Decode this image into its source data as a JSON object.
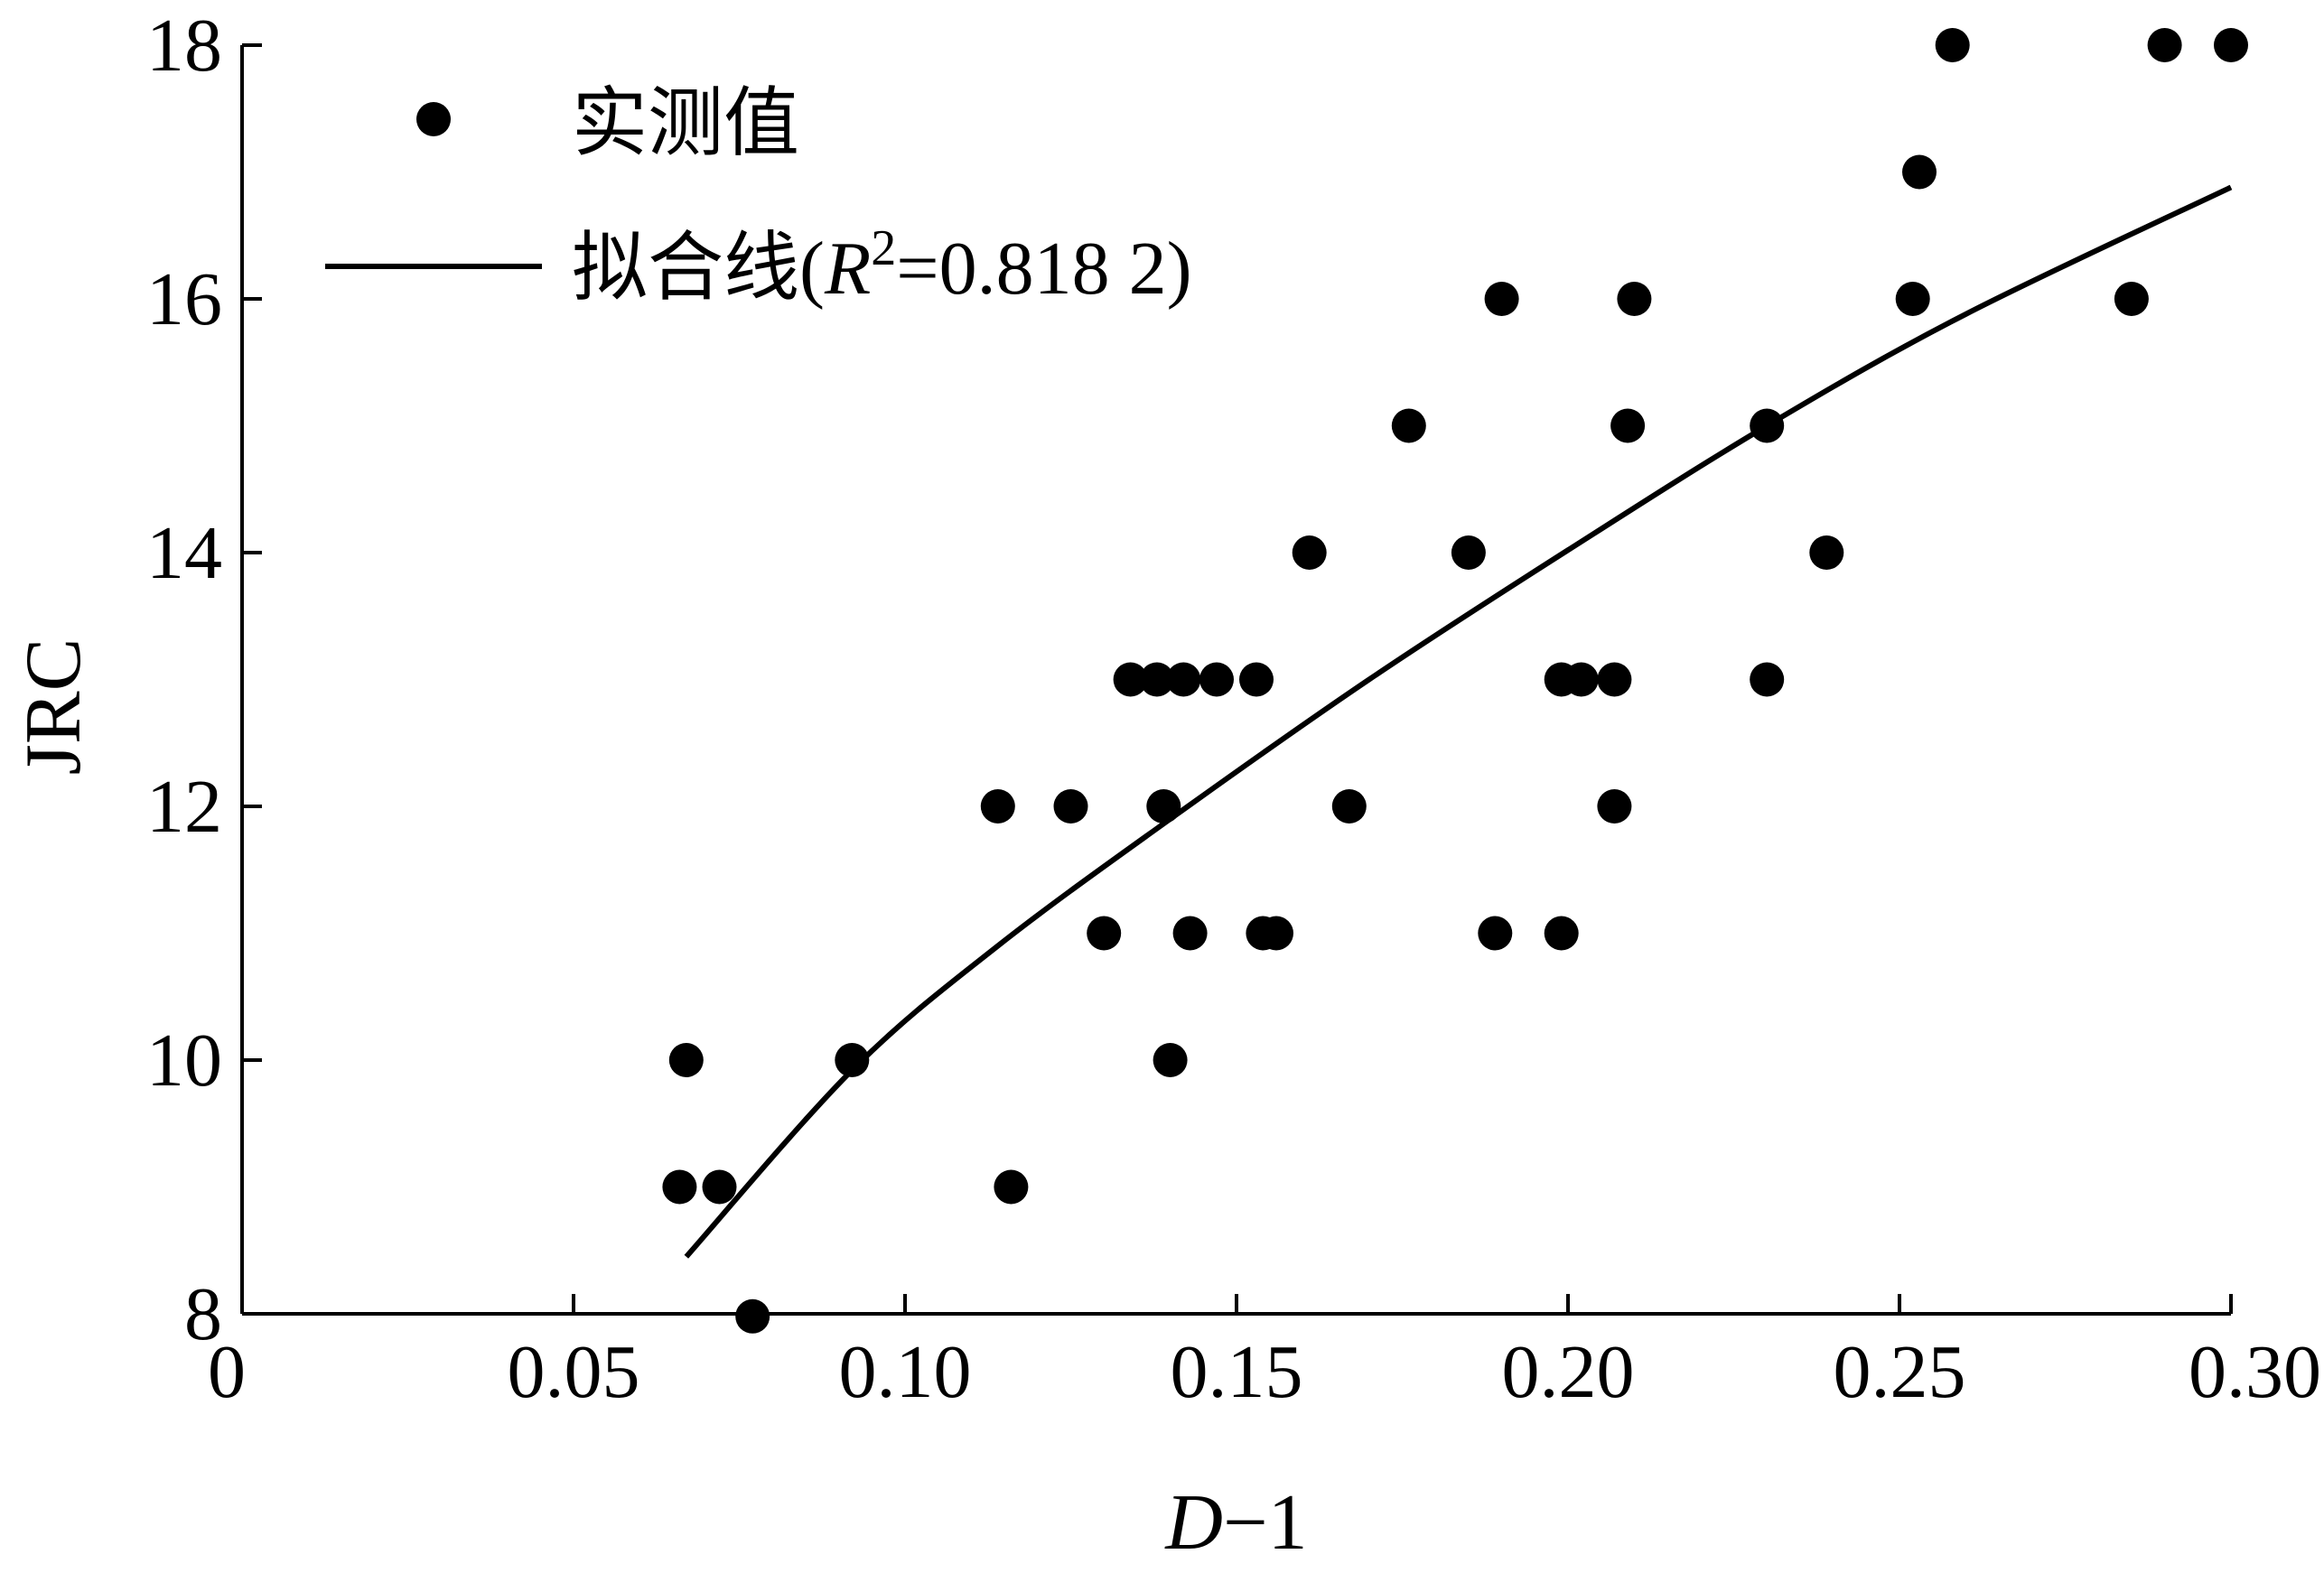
{
  "chart_data": {
    "type": "scatter",
    "xlabel": "D−1",
    "ylabel": "JRC",
    "xlim": [
      0,
      0.3
    ],
    "ylim": [
      8,
      18
    ],
    "x_ticks": [
      "0",
      "0.05",
      "0.10",
      "0.15",
      "0.20",
      "0.25",
      "0.30"
    ],
    "y_ticks": [
      "8",
      "10",
      "12",
      "14",
      "16",
      "18"
    ],
    "grid": false,
    "legend_position": "top-left",
    "legend": {
      "measured_label": "实测值",
      "fit_label_prefix": "拟合线(",
      "fit_label_r": "R",
      "fit_label_sup": "2",
      "fit_label_value": "=0.818 2)"
    },
    "series": [
      {
        "name": "实测值",
        "type": "scatter",
        "points": [
          [
            0.066,
            9.0
          ],
          [
            0.067,
            10.0
          ],
          [
            0.072,
            9.0
          ],
          [
            0.077,
            7.98
          ],
          [
            0.092,
            10.0
          ],
          [
            0.114,
            12.0
          ],
          [
            0.116,
            9.0
          ],
          [
            0.125,
            12.0
          ],
          [
            0.13,
            11.0
          ],
          [
            0.134,
            13.0
          ],
          [
            0.138,
            13.0
          ],
          [
            0.139,
            12.0
          ],
          [
            0.14,
            10.0
          ],
          [
            0.142,
            13.0
          ],
          [
            0.143,
            11.0
          ],
          [
            0.147,
            13.0
          ],
          [
            0.153,
            13.0
          ],
          [
            0.154,
            11.0
          ],
          [
            0.156,
            11.0
          ],
          [
            0.161,
            14.0
          ],
          [
            0.167,
            12.0
          ],
          [
            0.176,
            15.0
          ],
          [
            0.185,
            14.0
          ],
          [
            0.189,
            11.0
          ],
          [
            0.19,
            16.0
          ],
          [
            0.199,
            13.0
          ],
          [
            0.199,
            11.0
          ],
          [
            0.202,
            13.0
          ],
          [
            0.207,
            13.0
          ],
          [
            0.207,
            12.0
          ],
          [
            0.209,
            15.0
          ],
          [
            0.21,
            16.0
          ],
          [
            0.23,
            15.0
          ],
          [
            0.23,
            13.0
          ],
          [
            0.239,
            14.0
          ],
          [
            0.252,
            16.0
          ],
          [
            0.253,
            17.0
          ],
          [
            0.258,
            18.0
          ],
          [
            0.285,
            16.0
          ],
          [
            0.29,
            18.0
          ],
          [
            0.3,
            18.0
          ]
        ]
      },
      {
        "name": "拟合线",
        "type": "line",
        "points": [
          [
            0.067,
            8.45
          ],
          [
            0.092,
            9.92
          ],
          [
            0.114,
            10.9
          ],
          [
            0.14,
            11.9
          ],
          [
            0.17,
            13.0
          ],
          [
            0.2,
            14.02
          ],
          [
            0.23,
            15.0
          ],
          [
            0.26,
            15.88
          ],
          [
            0.3,
            16.88
          ]
        ]
      }
    ]
  }
}
